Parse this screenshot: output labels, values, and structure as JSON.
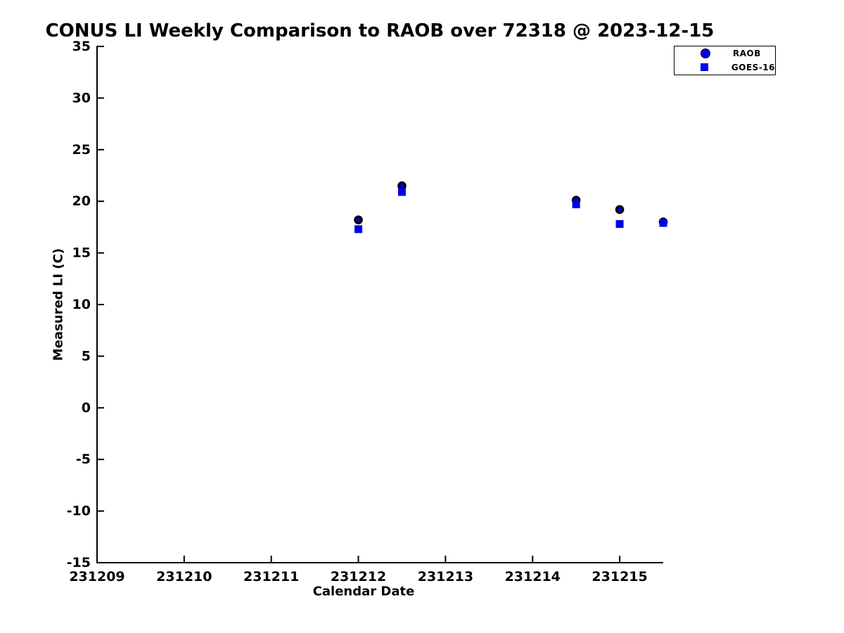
{
  "chart_data": {
    "type": "scatter",
    "title": "CONUS LI Weekly Comparison to RAOB over 72318 @ 2023-12-15",
    "xlabel": "Calendar Date",
    "ylabel": "Measured LI (C)",
    "xlim": [
      231209,
      231215.5
    ],
    "ylim": [
      -15,
      35
    ],
    "x_ticks": [
      231209,
      231210,
      231211,
      231212,
      231213,
      231214,
      231215
    ],
    "y_ticks": [
      -15,
      -10,
      -5,
      0,
      5,
      10,
      15,
      20,
      25,
      30,
      35
    ],
    "grid": false,
    "background": "#ffffff",
    "axis_color": "#000000",
    "marker_blue": "#0000ee",
    "legend_position": "top-right",
    "x": [
      231212,
      231212.5,
      231214.5,
      231215,
      231215.5
    ],
    "series": [
      {
        "name": "RAOB",
        "marker": "circle",
        "face_color": "#0000dd",
        "edge_color": "#000000",
        "values": [
          18.2,
          21.5,
          20.1,
          19.2,
          18.0
        ]
      },
      {
        "name": "GOES-16",
        "marker": "square",
        "face_color": "#0000ee",
        "edge_color": "#0000ee",
        "values": [
          17.3,
          20.9,
          19.7,
          17.8,
          17.9
        ]
      }
    ]
  }
}
